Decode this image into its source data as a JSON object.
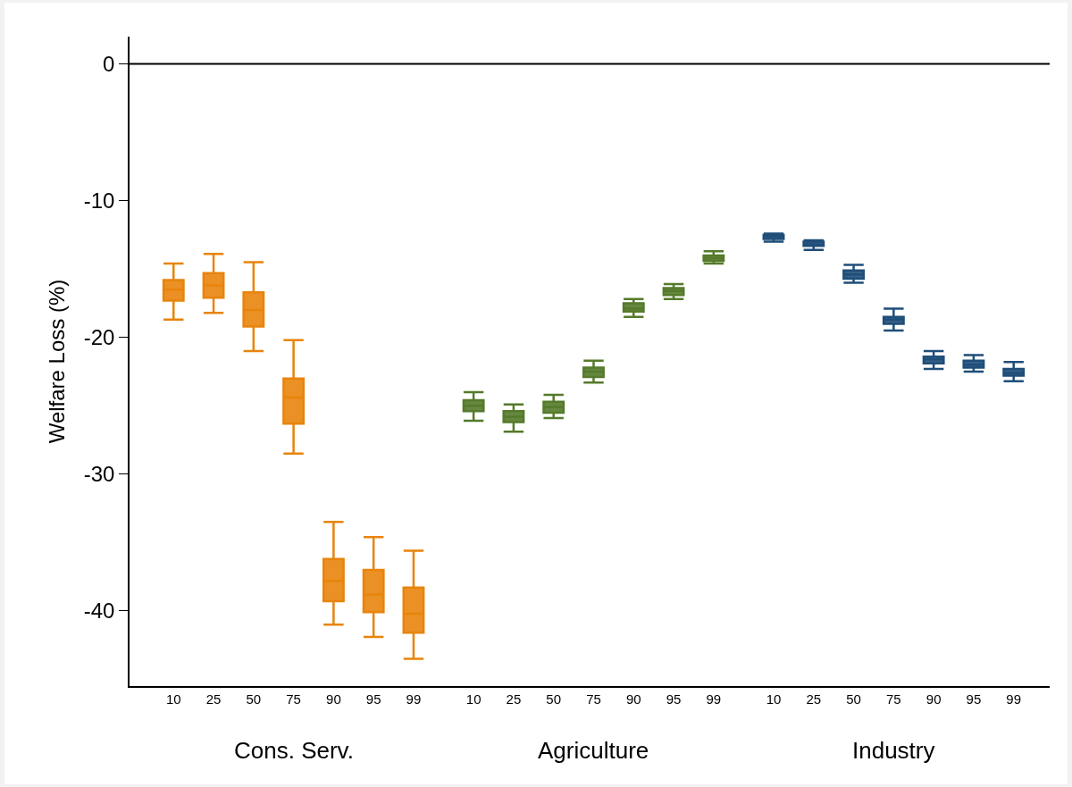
{
  "chart_data": {
    "type": "box",
    "ylabel": "Welfare Loss (%)",
    "categories": [
      "10",
      "25",
      "50",
      "75",
      "90",
      "95",
      "99",
      "10",
      "25",
      "50",
      "75",
      "90",
      "95",
      "99",
      "10",
      "25",
      "50",
      "75",
      "90",
      "95",
      "99"
    ],
    "ylim": [
      -45.5,
      2
    ],
    "yticks": [
      0,
      -10,
      -20,
      -30,
      -40
    ],
    "annotations": [
      "Cons. Serv.",
      "Agriculture",
      "Industry"
    ],
    "ref_lines": [
      {
        "axis": "y",
        "value": 0,
        "color": "#000000"
      }
    ],
    "series": [
      {
        "color": "#e8840c",
        "boxes": [
          {
            "low": -18.7,
            "q1": -17.3,
            "median": -16.5,
            "q3": -15.8,
            "high": -14.6
          },
          {
            "low": -18.2,
            "q1": -17.1,
            "median": -16.2,
            "q3": -15.3,
            "high": -13.9
          },
          {
            "low": -21.0,
            "q1": -19.2,
            "median": -18.0,
            "q3": -16.7,
            "high": -14.5
          },
          {
            "low": -28.5,
            "q1": -26.3,
            "median": -24.4,
            "q3": -23.0,
            "high": -20.2
          },
          {
            "low": -41.0,
            "q1": -39.3,
            "median": -37.8,
            "q3": -36.2,
            "high": -33.5
          },
          {
            "low": -41.9,
            "q1": -40.1,
            "median": -38.8,
            "q3": -37.0,
            "high": -34.6
          },
          {
            "low": -43.5,
            "q1": -41.6,
            "median": -40.2,
            "q3": -38.3,
            "high": -35.6
          },
          null,
          null,
          null,
          null,
          null,
          null,
          null,
          null,
          null,
          null,
          null,
          null,
          null,
          null
        ]
      },
      {
        "color": "#557a2b",
        "boxes": [
          null,
          null,
          null,
          null,
          null,
          null,
          null,
          {
            "low": -26.1,
            "q1": -25.4,
            "median": -25.0,
            "q3": -24.6,
            "high": -24.0
          },
          {
            "low": -26.9,
            "q1": -26.2,
            "median": -25.8,
            "q3": -25.4,
            "high": -24.9
          },
          {
            "low": -25.9,
            "q1": -25.5,
            "median": -25.1,
            "q3": -24.7,
            "high": -24.2
          },
          {
            "low": -23.3,
            "q1": -22.9,
            "median": -22.5,
            "q3": -22.2,
            "high": -21.7
          },
          {
            "low": -18.5,
            "q1": -18.1,
            "median": -17.9,
            "q3": -17.5,
            "high": -17.2
          },
          {
            "low": -17.2,
            "q1": -16.9,
            "median": -16.6,
            "q3": -16.4,
            "high": -16.1
          },
          {
            "low": -14.6,
            "q1": -14.4,
            "median": -14.2,
            "q3": -14.0,
            "high": -13.7
          },
          null,
          null,
          null,
          null,
          null,
          null,
          null
        ]
      },
      {
        "color": "#1f4e79",
        "boxes": [
          null,
          null,
          null,
          null,
          null,
          null,
          null,
          null,
          null,
          null,
          null,
          null,
          null,
          null,
          {
            "low": -13.0,
            "q1": -12.8,
            "median": -12.6,
            "q3": -12.5,
            "high": -12.4
          },
          {
            "low": -13.6,
            "q1": -13.3,
            "median": -13.2,
            "q3": -13.0,
            "high": -12.9
          },
          {
            "low": -16.0,
            "q1": -15.7,
            "median": -15.4,
            "q3": -15.1,
            "high": -14.7
          },
          {
            "low": -19.5,
            "q1": -19.0,
            "median": -18.7,
            "q3": -18.5,
            "high": -17.9
          },
          {
            "low": -22.3,
            "q1": -21.9,
            "median": -21.6,
            "q3": -21.4,
            "high": -21.0
          },
          {
            "low": -22.5,
            "q1": -22.2,
            "median": -22.0,
            "q3": -21.7,
            "high": -21.3
          },
          {
            "low": -23.2,
            "q1": -22.8,
            "median": -22.6,
            "q3": -22.3,
            "high": -21.8
          }
        ]
      }
    ]
  }
}
